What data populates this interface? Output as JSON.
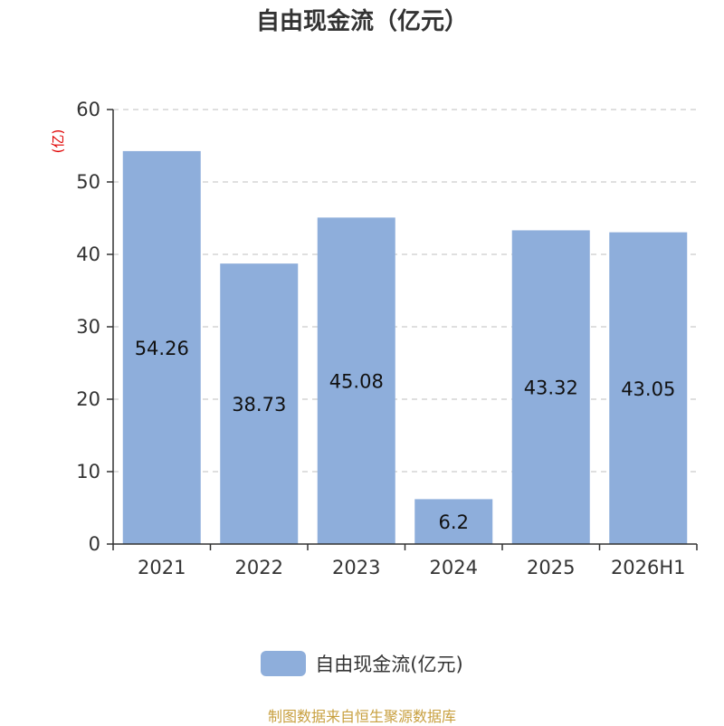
{
  "chart_data": {
    "type": "bar",
    "title": "自由现金流（亿元）",
    "ylabel": "(亿)",
    "xlabel": "",
    "categories": [
      "2021",
      "2022",
      "2023",
      "2024",
      "2025",
      "2026H1"
    ],
    "series": [
      {
        "name": "自由现金流(亿元)",
        "values": [
          54.26,
          38.73,
          45.08,
          6.2,
          43.32,
          43.05
        ]
      }
    ],
    "ylim": [
      0,
      60
    ],
    "yticks": [
      0,
      10,
      20,
      30,
      40,
      50,
      60
    ],
    "grid": true,
    "legend_position": "bottom"
  },
  "colors": {
    "bar": "#8eaedb",
    "axis": "#333333",
    "grid": "#cccccc",
    "ylabel": "#e00000",
    "source": "#c8a040",
    "text": "#333333"
  },
  "footer": {
    "source": "制图数据来自恒生聚源数据库"
  }
}
